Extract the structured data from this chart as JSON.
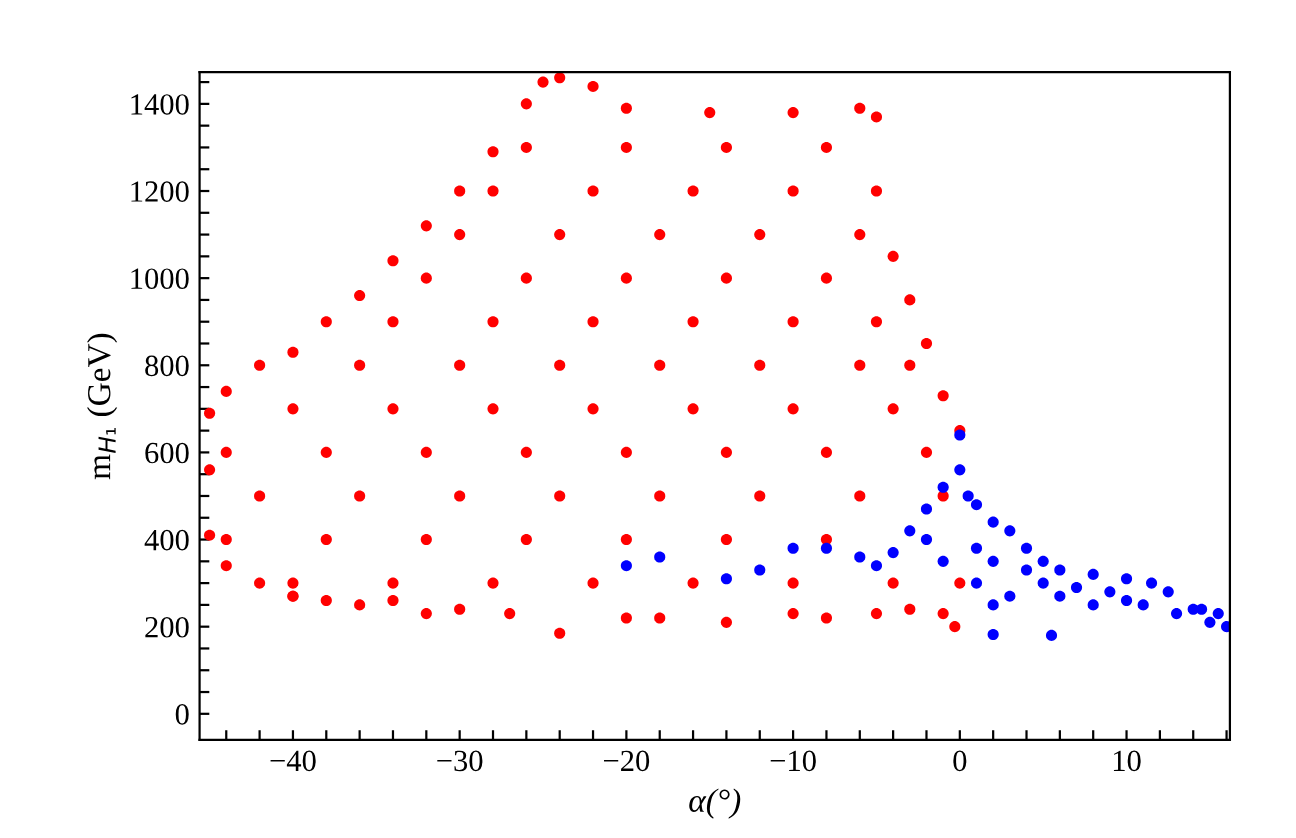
{
  "chart_data": {
    "type": "scatter",
    "xlabel": "α(°)",
    "ylabel": "m$_{H₁}$ (GeV)",
    "marker": "circle",
    "xlim": [
      -45.6,
      16.2
    ],
    "ylim": [
      -60,
      1473
    ],
    "xticks": [
      {
        "value": -44,
        "label": null
      },
      {
        "value": -42,
        "label": null
      },
      -40,
      {
        "value": -38,
        "label": null
      },
      {
        "value": -36,
        "label": null
      },
      {
        "value": -34,
        "label": null
      },
      {
        "value": -32,
        "label": null
      },
      -30,
      {
        "value": -28,
        "label": null
      },
      {
        "value": -26,
        "label": null
      },
      {
        "value": -24,
        "label": null
      },
      {
        "value": -22,
        "label": null
      },
      -20,
      {
        "value": -18,
        "label": null
      },
      {
        "value": -16,
        "label": null
      },
      {
        "value": -14,
        "label": null
      },
      {
        "value": -12,
        "label": null
      },
      -10,
      {
        "value": -8,
        "label": null
      },
      {
        "value": -6,
        "label": null
      },
      {
        "value": -4,
        "label": null
      },
      {
        "value": -2,
        "label": null
      },
      0,
      {
        "value": 2,
        "label": null
      },
      {
        "value": 4,
        "label": null
      },
      {
        "value": 6,
        "label": null
      },
      {
        "value": 8,
        "label": null
      },
      10,
      {
        "value": 12,
        "label": null
      },
      {
        "value": 14,
        "label": null
      },
      {
        "value": 16,
        "label": null
      }
    ],
    "yticks": [
      0,
      {
        "value": 50,
        "label": null
      },
      {
        "value": 100,
        "label": null
      },
      {
        "value": 150,
        "label": null
      },
      200,
      {
        "value": 250,
        "label": null
      },
      {
        "value": 300,
        "label": null
      },
      {
        "value": 350,
        "label": null
      },
      400,
      {
        "value": 450,
        "label": null
      },
      {
        "value": 500,
        "label": null
      },
      {
        "value": 550,
        "label": null
      },
      600,
      {
        "value": 650,
        "label": null
      },
      {
        "value": 700,
        "label": null
      },
      {
        "value": 750,
        "label": null
      },
      800,
      {
        "value": 850,
        "label": null
      },
      {
        "value": 900,
        "label": null
      },
      {
        "value": 950,
        "label": null
      },
      1000,
      {
        "value": 1050,
        "label": null
      },
      {
        "value": 1100,
        "label": null
      },
      {
        "value": 1150,
        "label": null
      },
      1200,
      {
        "value": 1250,
        "label": null
      },
      {
        "value": 1300,
        "label": null
      },
      {
        "value": 1350,
        "label": null
      },
      1400,
      {
        "value": 1450,
        "label": null
      }
    ],
    "series": [
      {
        "color": "#ff0000",
        "x": [
          -45,
          -44,
          -42,
          -40,
          -38,
          -36,
          -34,
          -32,
          -30,
          -28,
          -26,
          -25,
          -24,
          -22,
          -20,
          -15,
          -10,
          -6,
          -5,
          -4,
          -3,
          -2,
          -1,
          0,
          0,
          -0.3,
          -1,
          -3,
          -5,
          -8,
          -10,
          -14,
          -18,
          -20,
          -24,
          -27,
          -30,
          -34,
          -38,
          -40,
          -45,
          -45,
          -44,
          -42,
          -40,
          -36,
          -32,
          -40,
          -34,
          -28,
          -22,
          -16,
          -10,
          -4,
          -44,
          -38,
          -32,
          -26,
          -20,
          -14,
          -8,
          -42,
          -36,
          -30,
          -24,
          -18,
          -12,
          -6,
          -1,
          -44,
          -38,
          -32,
          -26,
          -20,
          -14,
          -8,
          -2,
          -40,
          -34,
          -28,
          -22,
          -16,
          -10,
          -4,
          -36,
          -30,
          -24,
          -18,
          -12,
          -6,
          -3,
          -34,
          -28,
          -22,
          -16,
          -10,
          -5,
          -32,
          -26,
          -20,
          -14,
          -8,
          -30,
          -24,
          -18,
          -12,
          -6,
          -28,
          -22,
          -16,
          -10,
          -5,
          -26,
          -20,
          -14,
          -8
        ],
        "values": [
          690,
          740,
          800,
          830,
          900,
          960,
          1040,
          1120,
          1200,
          1290,
          1400,
          1450,
          1460,
          1440,
          1390,
          1380,
          1380,
          1390,
          1370,
          1050,
          950,
          850,
          730,
          650,
          300,
          200,
          230,
          240,
          230,
          220,
          230,
          210,
          220,
          220,
          185,
          230,
          240,
          260,
          260,
          270,
          410,
          560,
          340,
          300,
          270,
          250,
          230,
          300,
          300,
          300,
          300,
          300,
          300,
          300,
          400,
          400,
          400,
          400,
          400,
          400,
          400,
          500,
          500,
          500,
          500,
          500,
          500,
          500,
          500,
          600,
          600,
          600,
          600,
          600,
          600,
          600,
          600,
          700,
          700,
          700,
          700,
          700,
          700,
          700,
          800,
          800,
          800,
          800,
          800,
          800,
          800,
          900,
          900,
          900,
          900,
          900,
          900,
          1000,
          1000,
          1000,
          1000,
          1000,
          1100,
          1100,
          1100,
          1100,
          1100,
          1200,
          1200,
          1200,
          1200,
          1200,
          1300,
          1300,
          1300,
          1300
        ]
      },
      {
        "color": "#0000ff",
        "x": [
          0,
          0,
          0.5,
          1,
          2,
          3,
          4,
          5,
          6,
          8,
          10,
          12.5,
          14,
          15.5,
          16,
          15,
          13,
          11,
          9,
          7,
          5,
          3,
          2,
          1,
          -1,
          -2,
          -3,
          -4,
          -5,
          -6,
          -8,
          -10,
          -12,
          -14,
          -18,
          -20,
          -2,
          -1,
          1,
          2,
          4,
          6,
          8,
          10,
          11.5,
          14.5,
          2,
          5.5
        ],
        "values": [
          640,
          560,
          500,
          480,
          440,
          420,
          380,
          350,
          330,
          320,
          310,
          280,
          240,
          230,
          200,
          210,
          230,
          250,
          280,
          290,
          300,
          270,
          250,
          300,
          350,
          400,
          420,
          370,
          340,
          360,
          380,
          380,
          330,
          310,
          360,
          340,
          470,
          520,
          380,
          350,
          330,
          270,
          250,
          260,
          300,
          240,
          182,
          180
        ]
      }
    ]
  }
}
